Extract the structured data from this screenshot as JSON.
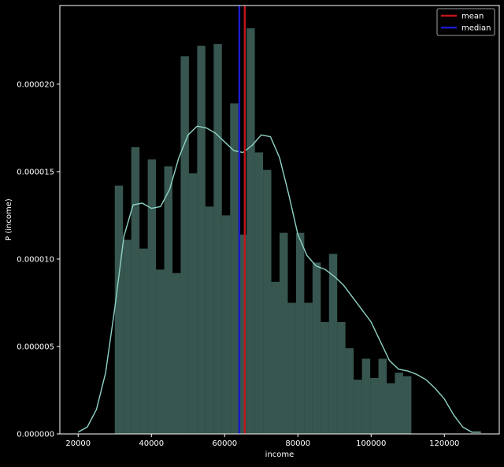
{
  "chart_data": {
    "type": "bar",
    "title": "",
    "xlabel": "income",
    "ylabel": "P (income)",
    "xlim": [
      15000,
      135000
    ],
    "ylim": [
      0,
      2.45e-05
    ],
    "x_ticks": [
      20000,
      40000,
      60000,
      80000,
      100000,
      120000
    ],
    "x_tick_labels": [
      "20000",
      "40000",
      "60000",
      "80000",
      "100000",
      "120000"
    ],
    "y_ticks": [
      0,
      5e-06,
      1e-05,
      1.5e-05,
      2e-05
    ],
    "y_tick_labels": [
      "0.000000",
      "0.000005",
      "0.000010",
      "0.000015",
      "0.000020"
    ],
    "grid": false,
    "legend_position": "top-right",
    "histogram": {
      "bin_start": 30000,
      "bin_width": 2250,
      "values": [
        1.42e-05,
        1.11e-05,
        1.64e-05,
        1.06e-05,
        1.57e-05,
        9.4e-06,
        1.53e-05,
        9.2e-06,
        2.16e-05,
        1.49e-05,
        2.22e-05,
        1.3e-05,
        2.23e-05,
        1.25e-05,
        1.89e-05,
        1.14e-05,
        2.32e-05,
        1.61e-05,
        1.51e-05,
        8.7e-06,
        1.15e-05,
        7.5e-06,
        1.15e-05,
        7.5e-06,
        9.8e-06,
        6.4e-06,
        1.03e-05,
        6.4e-06,
        4.9e-06,
        3.1e-06,
        4.3e-06,
        3.2e-06,
        4.3e-06,
        2.9e-06,
        3.5e-06,
        3.3e-06
      ],
      "color": "#5b8f84"
    },
    "kde": {
      "x": [
        20000,
        22500,
        25000,
        27500,
        30000,
        32500,
        35000,
        37500,
        40000,
        42500,
        45000,
        47500,
        50000,
        52500,
        55000,
        57500,
        60000,
        62500,
        65000,
        67500,
        70000,
        72500,
        75000,
        77500,
        80000,
        82500,
        85000,
        87500,
        90000,
        92500,
        95000,
        97500,
        100000,
        102500,
        105000,
        107500,
        110000,
        112500,
        115000,
        117500,
        120000,
        122500,
        125000,
        127500,
        130000
      ],
      "y": [
        1e-07,
        4e-07,
        1.4e-06,
        3.5e-06,
        7.2e-06,
        1.13e-05,
        1.31e-05,
        1.32e-05,
        1.29e-05,
        1.3e-05,
        1.4e-05,
        1.58e-05,
        1.71e-05,
        1.76e-05,
        1.75e-05,
        1.72e-05,
        1.67e-05,
        1.62e-05,
        1.61e-05,
        1.65e-05,
        1.71e-05,
        1.7e-05,
        1.58e-05,
        1.37e-05,
        1.14e-05,
        1.02e-05,
        9.6e-06,
        9.4e-06,
        9e-06,
        8.5e-06,
        7.8e-06,
        7.1e-06,
        6.4e-06,
        5.3e-06,
        4.2e-06,
        3.7e-06,
        3.6e-06,
        3.4e-06,
        3.1e-06,
        2.6e-06,
        2e-06,
        1.1e-06,
        4e-07,
        1e-07,
        1e-07
      ],
      "color": "#8ed3c7"
    },
    "reference_lines": [
      {
        "name": "mean",
        "x": 65500,
        "color": "#c0161a"
      },
      {
        "name": "median",
        "x": 64000,
        "color": "#1a1ac8"
      }
    ],
    "colors": {
      "background": "#000000",
      "axes": "#ffffff",
      "text": "#ffffff"
    }
  }
}
